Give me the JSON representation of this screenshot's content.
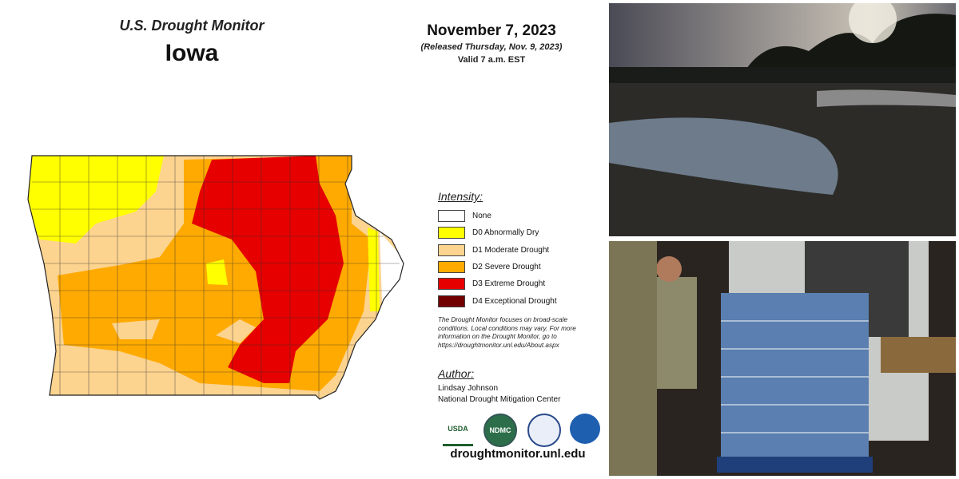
{
  "header": {
    "title": "U.S. Drought Monitor",
    "state": "Iowa"
  },
  "dates": {
    "date": "November 7, 2023",
    "released": "(Released Thursday, Nov. 9, 2023)",
    "valid": "Valid 7 a.m. EST"
  },
  "legend": {
    "title": "Intensity:",
    "items": [
      {
        "label": "None",
        "color": "#ffffff"
      },
      {
        "label": "D0 Abnormally Dry",
        "color": "#ffff00"
      },
      {
        "label": "D1 Moderate Drought",
        "color": "#fcd38f"
      },
      {
        "label": "D2 Severe Drought",
        "color": "#ffaa00"
      },
      {
        "label": "D3 Extreme Drought",
        "color": "#e60000"
      },
      {
        "label": "D4 Exceptional Drought",
        "color": "#730000"
      }
    ]
  },
  "note": "The Drought Monitor focuses on broad-scale conditions. Local conditions may vary. For more information on the Drought Monitor, go to https://droughtmonitor.unl.edu/About.aspx",
  "author": {
    "heading": "Author:",
    "name": "Lindsay Johnson",
    "org": "National Drought Mitigation Center"
  },
  "logos": [
    "USDA",
    "NDMC"
  ],
  "website": "droughtmonitor.unl.edu"
}
